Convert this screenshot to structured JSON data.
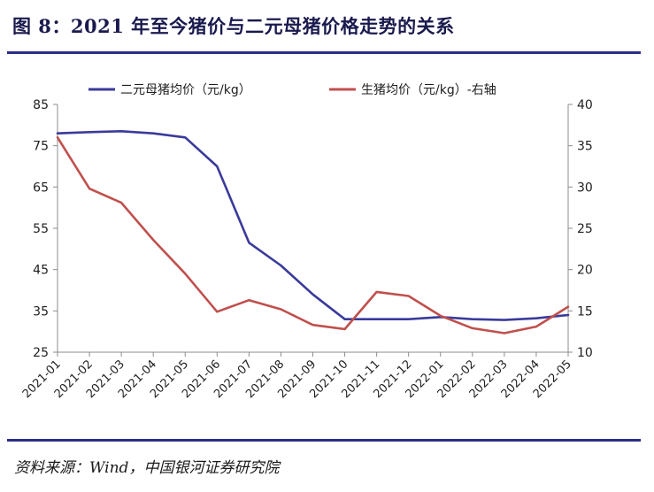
{
  "title": "图 8：2021 年至今猪价与二元母猪价格走势的关系",
  "source": "资料来源：Wind，中国银河证券研究院",
  "colors": {
    "series1": "#3a3a9c",
    "series2": "#c0504d",
    "axis": "#8c8c8c",
    "rule": "#2b2d8a"
  },
  "chart_data": {
    "type": "line",
    "x": [
      "2021-01",
      "2021-02",
      "2021-03",
      "2021-04",
      "2021-05",
      "2021-06",
      "2021-07",
      "2021-08",
      "2021-09",
      "2021-10",
      "2021-11",
      "2021-12",
      "2022-01",
      "2022-02",
      "2022-03",
      "2022-04",
      "2022-05"
    ],
    "y_left_lim": [
      25,
      85
    ],
    "y_left_ticks": [
      "85",
      "75",
      "65",
      "55",
      "45",
      "35",
      "25"
    ],
    "y_right_lim": [
      10,
      40
    ],
    "y_right_ticks": [
      "40",
      "35",
      "30",
      "25",
      "20",
      "15",
      "10"
    ],
    "legend_position": "top",
    "grid": false,
    "series": [
      {
        "name": "二元母猪均价（元/kg）",
        "axis": "left",
        "values": [
          78,
          78.3,
          78.5,
          78,
          77,
          70,
          51.5,
          46,
          39,
          33,
          33,
          33,
          33.5,
          33,
          32.8,
          33.2,
          34
        ]
      },
      {
        "name": "生猪均价（元/kg）-右轴",
        "axis": "right",
        "values": [
          36,
          29.8,
          28.1,
          23.6,
          19.5,
          14.9,
          16.3,
          15.2,
          13.3,
          12.8,
          17.3,
          16.8,
          14.4,
          12.9,
          12.3,
          13.1,
          15.5
        ]
      }
    ]
  }
}
